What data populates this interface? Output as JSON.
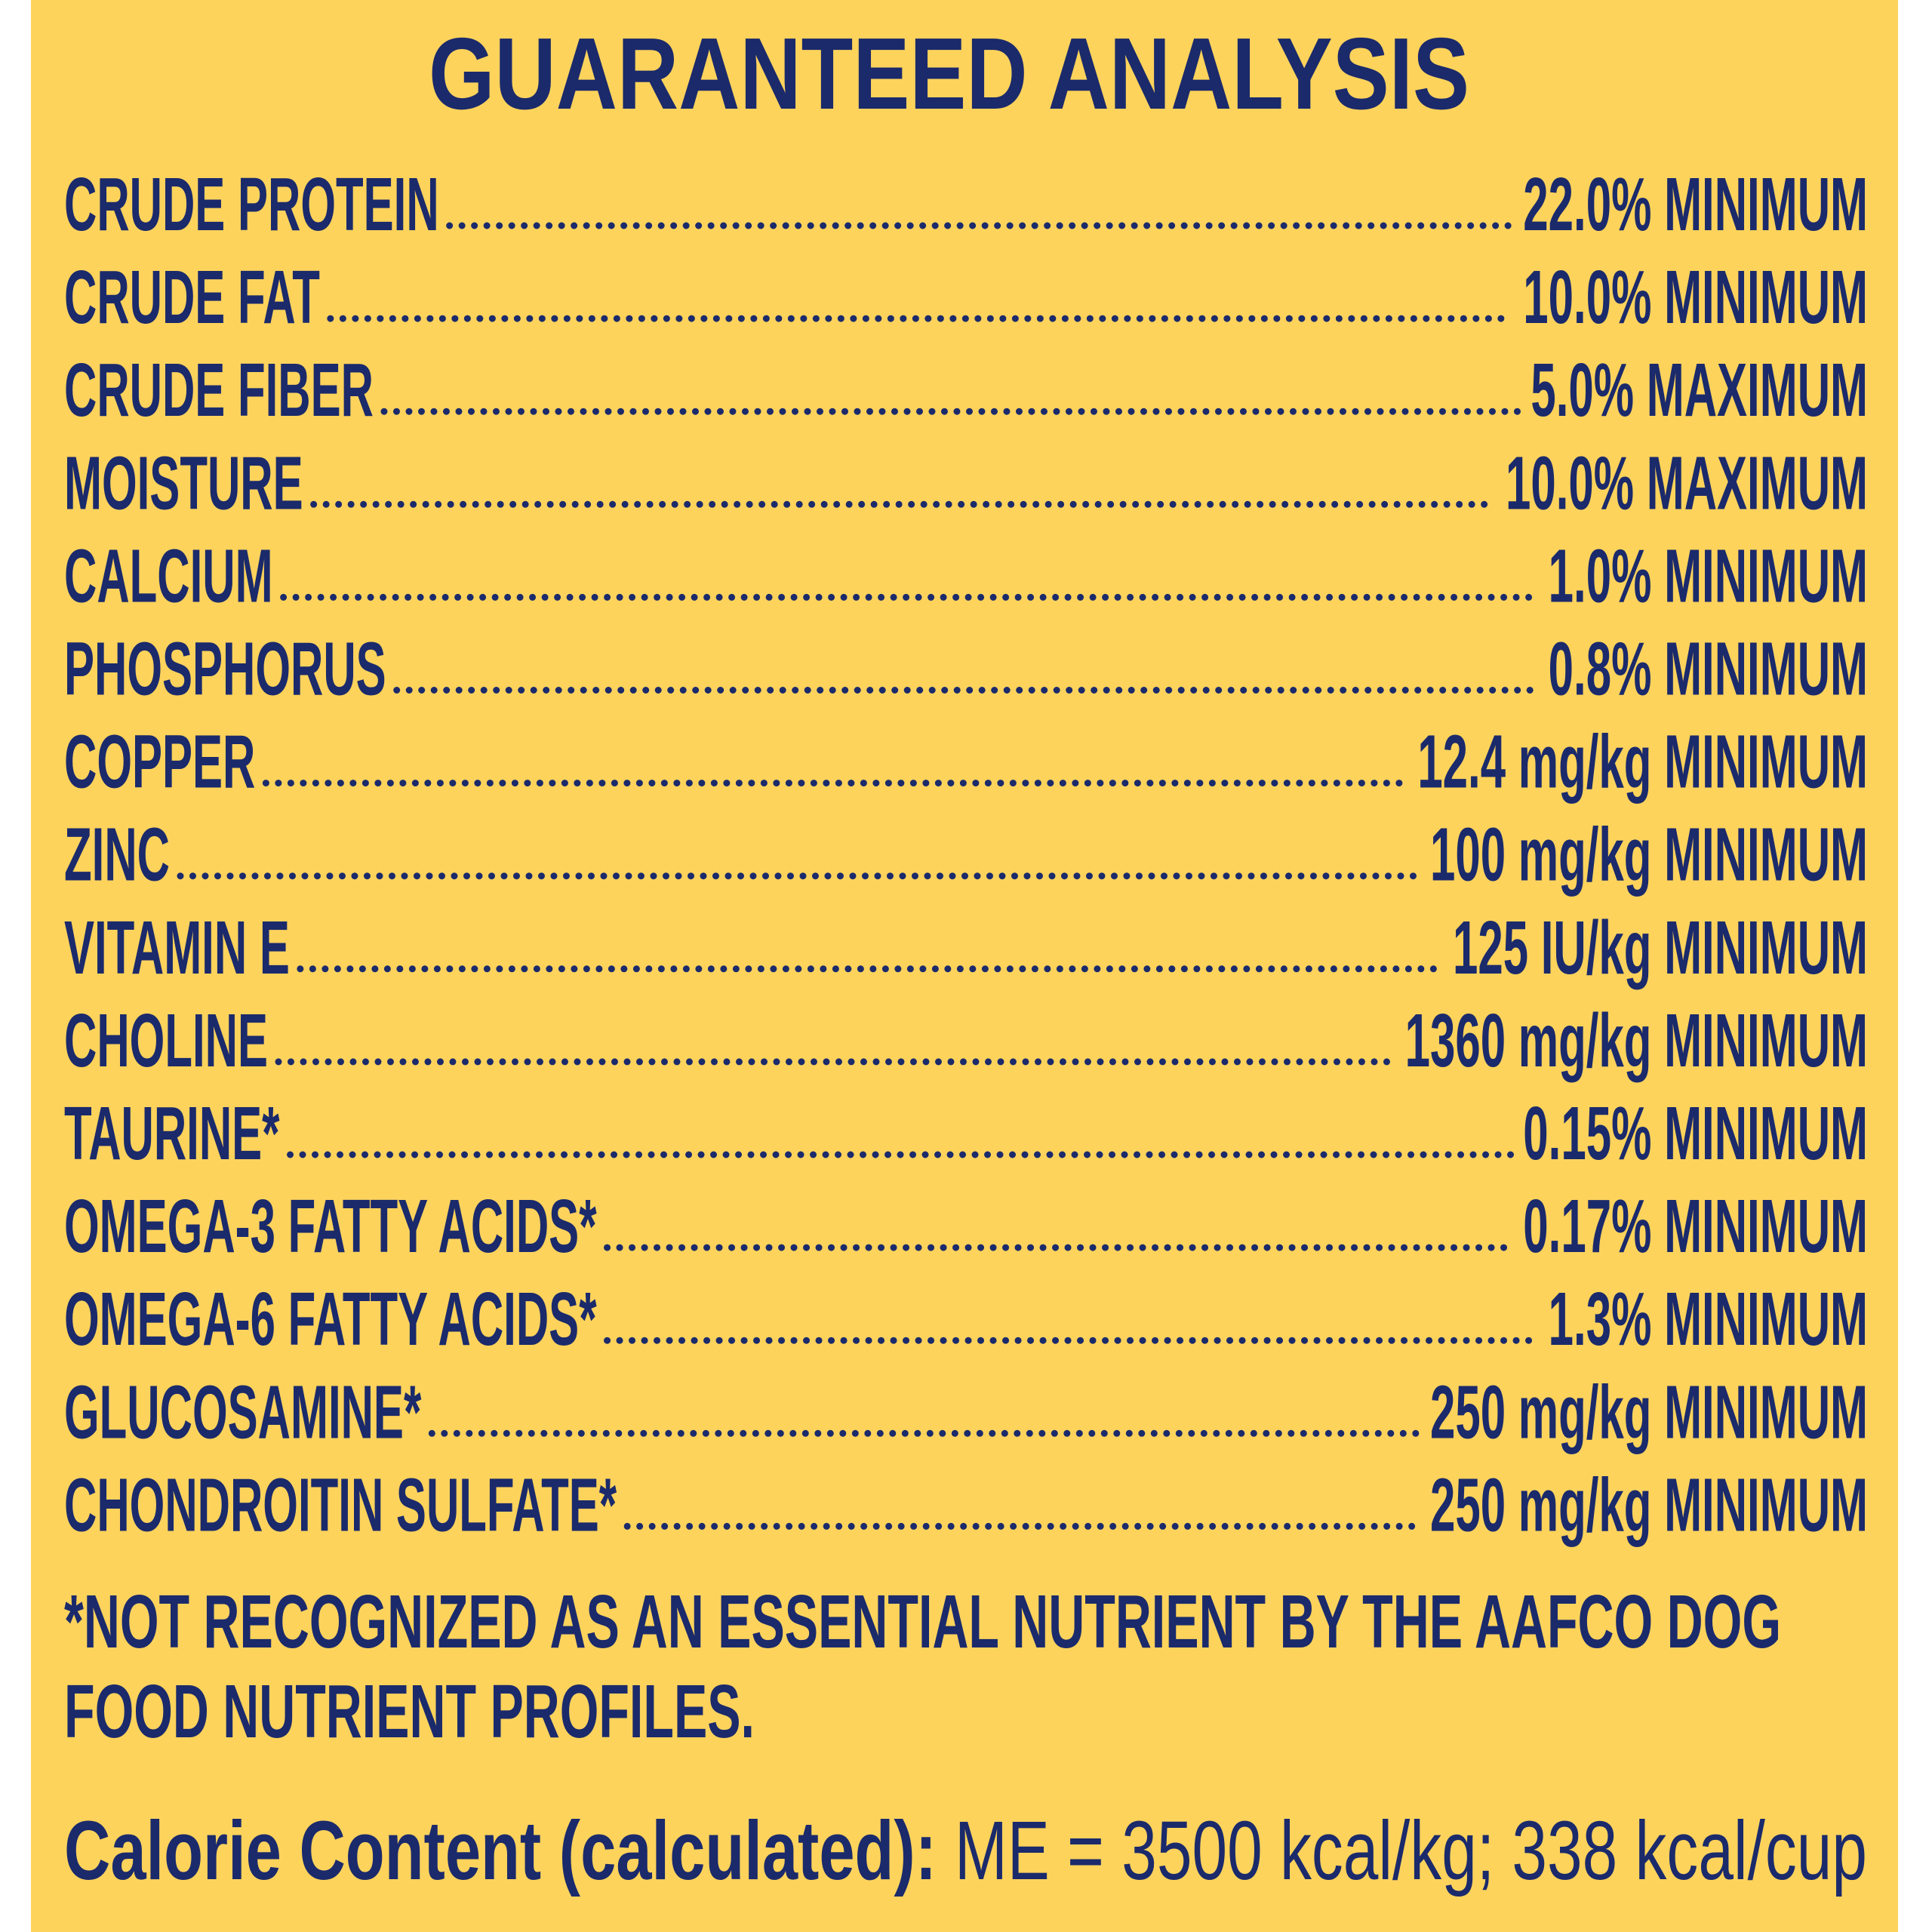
{
  "header": {
    "title": "GUARANTEED ANALYSIS"
  },
  "rows": [
    {
      "nutrient": "CRUDE PROTEIN",
      "amount": "22.0% MINIMUM"
    },
    {
      "nutrient": "CRUDE FAT",
      "amount": "10.0% MINIMUM"
    },
    {
      "nutrient": "CRUDE FIBER",
      "amount": "5.0% MAXIMUM"
    },
    {
      "nutrient": "MOISTURE",
      "amount": "10.0% MAXIMUM"
    },
    {
      "nutrient": "CALCIUM",
      "amount": "1.0% MINIMUM"
    },
    {
      "nutrient": "PHOSPHORUS",
      "amount": "0.8% MINIMUM"
    },
    {
      "nutrient": "COPPER",
      "amount": "12.4 mg/kg MINIMUM"
    },
    {
      "nutrient": "ZINC",
      "amount": "100 mg/kg MINIMUM"
    },
    {
      "nutrient": "VITAMIN E",
      "amount": "125 IU/kg MINIMUM"
    },
    {
      "nutrient": "CHOLINE",
      "amount": "1360 mg/kg MINIMUM"
    },
    {
      "nutrient": "TAURINE*",
      "amount": "0.15% MINIMUM"
    },
    {
      "nutrient": "OMEGA-3 FATTY ACIDS*",
      "amount": "0.17% MINIMUM"
    },
    {
      "nutrient": "OMEGA-6 FATTY ACIDS*",
      "amount": "1.3% MINIMUM"
    },
    {
      "nutrient": "GLUCOSAMINE*",
      "amount": "250 mg/kg MINIMUM"
    },
    {
      "nutrient": "CHONDROITIN SULFATE*",
      "amount": "250 mg/kg MINIMUM"
    }
  ],
  "footnote": {
    "lines": [
      "*NOT RECOGNIZED AS AN ESSENTIAL NUTRIENT BY THE AAFCO DOG",
      "FOOD NUTRIENT PROFILES."
    ]
  },
  "calorie": {
    "label": "Calorie Content (calculated):",
    "value": "ME = 3500 kcal/kg; 338 kcal/cup"
  }
}
